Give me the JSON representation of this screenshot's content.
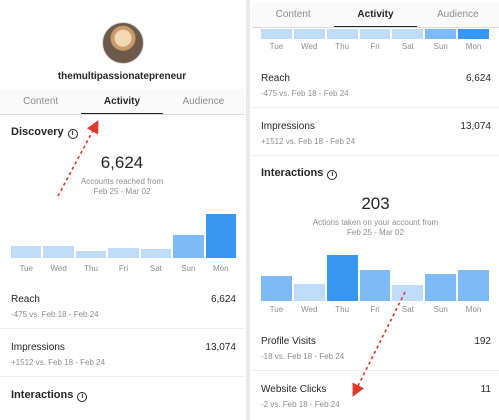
{
  "left": {
    "username": "themultipassionatepreneur",
    "tabs": [
      "Content",
      "Activity",
      "Audience"
    ],
    "discovery": {
      "title": "Discovery",
      "big_number": "6,624",
      "caption_line1": "Accounts reached from",
      "caption_line2": "Feb 25 - Mar 02"
    },
    "days": [
      "Tue",
      "Wed",
      "Thu",
      "Fri",
      "Sat",
      "Sun",
      "Mon"
    ],
    "reach": {
      "label": "Reach",
      "value": "6,624",
      "sub": "-475 vs. Feb 18 - Feb 24"
    },
    "impressions": {
      "label": "Impressions",
      "value": "13,074",
      "sub": "+1512 vs. Feb 18 - Feb 24"
    },
    "interactions_title": "Interactions"
  },
  "right": {
    "tabs": [
      "Content",
      "Activity",
      "Audience"
    ],
    "days_top": [
      "Tue",
      "Wed",
      "Thu",
      "Fri",
      "Sat",
      "Sun",
      "Mon"
    ],
    "reach": {
      "label": "Reach",
      "value": "6,624",
      "sub": "-475 vs. Feb 18 - Feb 24"
    },
    "impressions": {
      "label": "Impressions",
      "value": "13,074",
      "sub": "+1512 vs. Feb 18 - Feb 24"
    },
    "interactions": {
      "title": "Interactions",
      "big_number": "203",
      "caption_line1": "Actions taken on your account from",
      "caption_line2": "Feb 25 - Mar 02"
    },
    "days": [
      "Tue",
      "Wed",
      "Thu",
      "Fri",
      "Sat",
      "Sun",
      "Mon"
    ],
    "profile_visits": {
      "label": "Profile Visits",
      "value": "192",
      "sub": "-18 vs. Feb 18 - Feb 24"
    },
    "website_clicks": {
      "label": "Website Clicks",
      "value": "11",
      "sub": "-2 vs. Feb 18 - Feb 24"
    }
  },
  "chart_data": [
    {
      "type": "bar",
      "categories": [
        "Tue",
        "Wed",
        "Thu",
        "Fri",
        "Sat",
        "Sun",
        "Mon"
      ],
      "values": [
        0.27,
        0.27,
        0.16,
        0.23,
        0.21,
        0.52,
        1.0
      ],
      "title": "",
      "xlabel": "",
      "ylabel": ""
    },
    {
      "type": "bar",
      "categories": [
        "Tue",
        "Wed",
        "Thu",
        "Fri",
        "Sat",
        "Sun",
        "Mon"
      ],
      "values": [
        0.55,
        0.38,
        1.0,
        0.68,
        0.35,
        0.58,
        0.68
      ],
      "title": "",
      "xlabel": "",
      "ylabel": ""
    }
  ],
  "colors": {
    "accent": "#3897f0",
    "bar_light": "#bfdcfb",
    "arrow": "#e0392b"
  }
}
